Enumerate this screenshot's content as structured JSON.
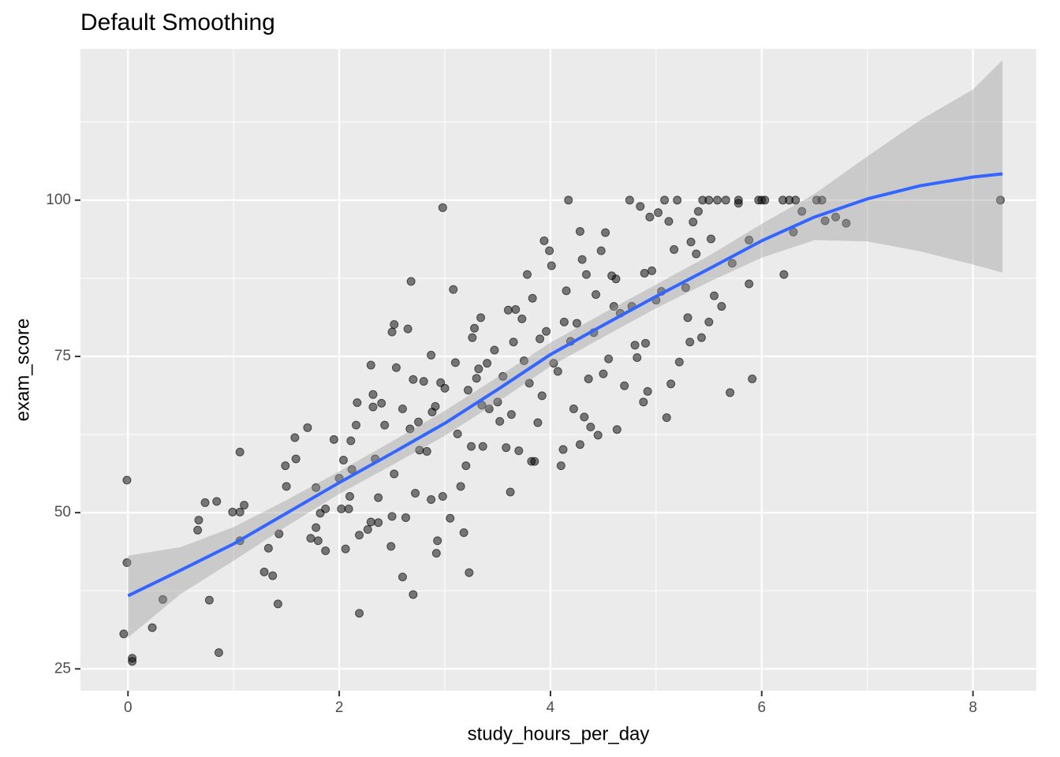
{
  "chart_data": {
    "type": "scatter",
    "title": "Default Smoothing",
    "x_label": "study_hours_per_day",
    "y_label": "exam_score",
    "xlim": [
      -0.45,
      8.6
    ],
    "ylim": [
      21.5,
      124.2
    ],
    "xticks": [
      0,
      2,
      4,
      6,
      8
    ],
    "yticks": [
      25,
      50,
      75,
      100
    ],
    "x_minor_ticks": [
      1,
      3,
      5,
      7
    ],
    "y_minor_ticks": [
      37.5,
      62.5,
      87.5,
      112.5
    ],
    "grid": true,
    "panel_color": "#ebebeb",
    "points": {
      "color": "#000000",
      "x": [
        -0.01,
        -0.01,
        -0.04,
        0.04,
        0.04,
        0.23,
        0.33,
        0.67,
        0.66,
        0.73,
        0.77,
        0.84,
        0.86,
        0.99,
        1.06,
        1.06,
        1.1,
        1.06,
        1.29,
        1.33,
        1.37,
        1.42,
        1.43,
        1.49,
        1.5,
        1.58,
        1.59,
        1.7,
        1.73,
        1.78,
        1.78,
        1.8,
        1.82,
        1.87,
        1.87,
        1.95,
        2.0,
        2.02,
        2.04,
        2.06,
        2.09,
        2.1,
        2.11,
        2.12,
        2.16,
        2.17,
        2.19,
        2.19,
        2.27,
        2.3,
        2.3,
        2.32,
        2.32,
        2.34,
        2.37,
        2.37,
        2.4,
        2.43,
        2.49,
        2.5,
        2.5,
        2.52,
        2.52,
        2.54,
        2.6,
        2.6,
        2.63,
        2.65,
        2.67,
        2.68,
        2.7,
        2.7,
        2.72,
        2.75,
        2.76,
        2.8,
        2.83,
        2.87,
        2.87,
        2.88,
        2.91,
        2.92,
        2.93,
        2.96,
        2.98,
        2.98,
        3.0,
        3.05,
        3.08,
        3.1,
        3.12,
        3.15,
        3.18,
        3.2,
        3.22,
        3.23,
        3.25,
        3.26,
        3.28,
        3.3,
        3.32,
        3.34,
        3.35,
        3.36,
        3.4,
        3.42,
        3.47,
        3.5,
        3.52,
        3.55,
        3.58,
        3.6,
        3.62,
        3.63,
        3.65,
        3.67,
        3.7,
        3.73,
        3.75,
        3.78,
        3.8,
        3.82,
        3.83,
        3.85,
        3.88,
        3.9,
        3.92,
        3.94,
        3.96,
        3.99,
        4.01,
        4.03,
        4.07,
        4.1,
        4.12,
        4.13,
        4.15,
        4.17,
        4.19,
        4.22,
        4.25,
        4.28,
        4.28,
        4.3,
        4.32,
        4.34,
        4.36,
        4.38,
        4.41,
        4.43,
        4.45,
        4.48,
        4.5,
        4.52,
        4.55,
        4.58,
        4.6,
        4.62,
        4.63,
        4.66,
        4.7,
        4.75,
        4.77,
        4.8,
        4.82,
        4.85,
        4.88,
        4.89,
        4.9,
        4.92,
        4.94,
        4.96,
        5.0,
        5.02,
        5.05,
        5.08,
        5.1,
        5.12,
        5.14,
        5.17,
        5.2,
        5.22,
        5.28,
        5.3,
        5.32,
        5.33,
        5.35,
        5.38,
        5.4,
        5.43,
        5.44,
        5.5,
        5.5,
        5.52,
        5.55,
        5.58,
        5.62,
        5.66,
        5.7,
        5.72,
        5.78,
        5.78,
        5.88,
        5.88,
        5.91,
        5.97,
        6.0,
        6.03,
        6.2,
        6.21,
        6.26,
        6.3,
        6.32,
        6.38,
        6.52,
        6.57,
        6.6,
        6.7,
        6.8,
        8.26
      ],
      "y": [
        55.2,
        42,
        30.6,
        26.7,
        26.2,
        31.6,
        36.1,
        48.8,
        47.2,
        51.6,
        36.0,
        51.8,
        27.6,
        50.1,
        50.1,
        59.7,
        51.2,
        45.5,
        40.5,
        44.3,
        39.9,
        35.4,
        46.6,
        57.5,
        54.2,
        62.0,
        58.6,
        63.6,
        45.9,
        47.6,
        54.0,
        45.5,
        49.9,
        43.9,
        50.6,
        61.7,
        55.5,
        50.6,
        58.4,
        44.2,
        50.6,
        52.6,
        61.5,
        56.9,
        64.0,
        67.6,
        46.4,
        33.9,
        47.3,
        48.5,
        73.6,
        68.9,
        66.9,
        58.6,
        52.4,
        48.4,
        67.5,
        64.0,
        44.6,
        49.4,
        78.9,
        80.1,
        56.2,
        73.2,
        66.6,
        39.7,
        49.2,
        79.4,
        63.4,
        87.0,
        36.9,
        71.3,
        53.1,
        64.5,
        60.0,
        71.0,
        59.8,
        75.2,
        52.1,
        66.1,
        67.0,
        43.5,
        45.5,
        70.8,
        98.8,
        52.6,
        69.9,
        49.1,
        85.7,
        74.0,
        62.6,
        54.2,
        46.8,
        57.5,
        69.6,
        40.4,
        60.6,
        78.0,
        79.5,
        71.5,
        73.0,
        81.2,
        67.2,
        60.6,
        73.9,
        66.6,
        76.0,
        67.7,
        64.6,
        71.8,
        60.4,
        82.4,
        53.3,
        65.7,
        77.3,
        82.5,
        59.9,
        81.0,
        74.3,
        88.1,
        70.7,
        58.2,
        84.3,
        58.2,
        64.4,
        77.8,
        68.7,
        93.5,
        79.0,
        91.9,
        89.5,
        73.9,
        72.6,
        57.5,
        60.1,
        80.5,
        85.5,
        100,
        77.4,
        66.6,
        80.3,
        95.0,
        60.9,
        90.5,
        65.3,
        88.1,
        71.4,
        63.7,
        78.8,
        84.9,
        62.4,
        91.9,
        72.2,
        94.8,
        74.6,
        87.9,
        83.0,
        87.4,
        63.3,
        81.9,
        70.3,
        100,
        83.0,
        76.8,
        74.8,
        99.0,
        67.7,
        88.3,
        77.1,
        69.4,
        97.3,
        88.7,
        84.0,
        98.0,
        85.4,
        100,
        65.2,
        96.6,
        70.6,
        92.1,
        100,
        74.1,
        86.0,
        81.2,
        77.3,
        93.3,
        96.5,
        91.4,
        98.2,
        78.0,
        100,
        100,
        80.5,
        93.8,
        84.7,
        100,
        83.0,
        100,
        69.2,
        89.9,
        100,
        99.5,
        93.6,
        86.6,
        71.4,
        100,
        100,
        100,
        100,
        88.1,
        100,
        94.9,
        100,
        98.2,
        100,
        100,
        96.7,
        97.3,
        96.3,
        100
      ]
    },
    "smooth": {
      "color": "#3366ff",
      "band_color": "#999999",
      "x": [
        0,
        0.5,
        1,
        1.5,
        2,
        2.5,
        3,
        3.5,
        4,
        4.5,
        5,
        5.5,
        6,
        6.5,
        7,
        7.5,
        8,
        8.28
      ],
      "values": [
        36.7,
        40.8,
        45.0,
        49.9,
        54.8,
        59.5,
        64.3,
        69.7,
        75.3,
        80.0,
        84.6,
        89.0,
        93.5,
        97.3,
        100.2,
        102.3,
        103.7,
        104.2
      ],
      "lower": [
        30.0,
        37.0,
        42.3,
        47.8,
        53.0,
        57.6,
        62.3,
        67.7,
        73.4,
        78.1,
        82.7,
        86.9,
        90.8,
        93.6,
        93.4,
        91.8,
        89.7,
        88.4
      ],
      "upper": [
        43.1,
        44.5,
        47.7,
        52.0,
        56.6,
        61.4,
        66.3,
        71.7,
        77.2,
        81.9,
        86.5,
        91.1,
        96.2,
        101.0,
        107.0,
        112.8,
        117.7,
        122.4
      ]
    }
  }
}
